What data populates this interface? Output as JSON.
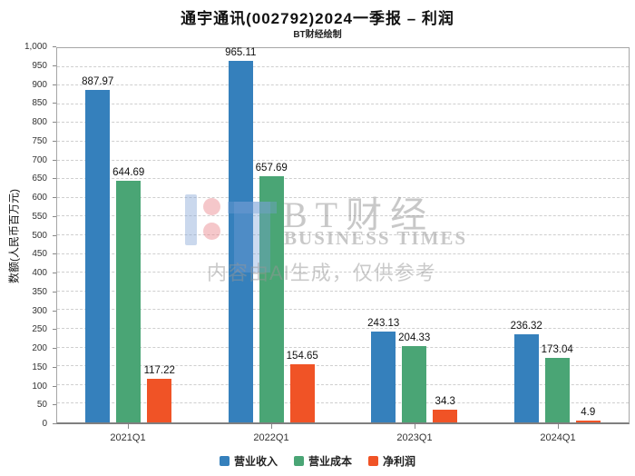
{
  "chart_data": {
    "type": "bar",
    "title": "通宇通讯(002792)2024一季报 – 利润",
    "subtitle": "BT财经绘制",
    "categories": [
      "2021Q1",
      "2022Q1",
      "2023Q1",
      "2024Q1"
    ],
    "series": [
      {
        "name": "营业收入",
        "color": "#3580bc",
        "values": [
          887.97,
          965.11,
          243.13,
          236.32
        ]
      },
      {
        "name": "营业成本",
        "color": "#4aa575",
        "values": [
          644.69,
          657.69,
          204.33,
          173.04
        ]
      },
      {
        "name": "净利润",
        "color": "#f05326",
        "values": [
          117.22,
          154.65,
          34.3,
          4.9
        ]
      }
    ],
    "xlabel": "",
    "ylabel": "数额(人民币百万元)",
    "ylim": [
      0,
      1000
    ],
    "ytick_step": 50,
    "ytick_format": "thousands-comma",
    "grid": true,
    "gridline_style": "dashed",
    "legend_position": "bottom",
    "bar_value_labels": true
  },
  "watermark": {
    "logo": "bt-finance-logo",
    "brand_cjk": "BT财经",
    "brand_en": "BUSINESS TIMES",
    "disclaimer": "内容由AI生成，仅供参考"
  }
}
